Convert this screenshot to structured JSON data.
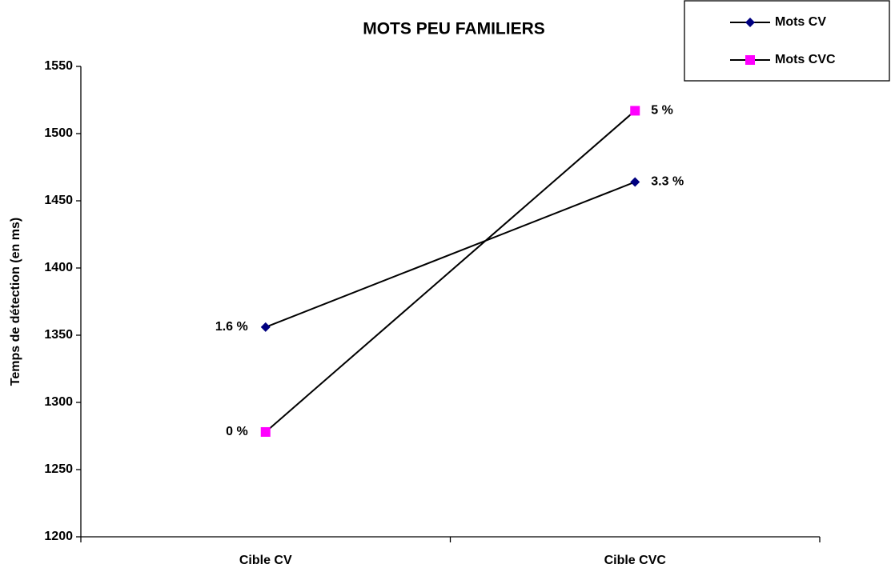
{
  "chart_data": {
    "type": "line",
    "title": "MOTS PEU FAMILIERS",
    "y_label": "Temps de détection (en ms)",
    "categories": [
      "Cible CV",
      "Cible CVC"
    ],
    "series": [
      {
        "name": "Mots CV",
        "color": "#000080",
        "marker": "diamond",
        "values": [
          1356,
          1464
        ],
        "point_labels": [
          "1.6 %",
          "3.3 %"
        ]
      },
      {
        "name": "Mots CVC",
        "color": "#ff00ff",
        "marker": "square",
        "values": [
          1278,
          1517
        ],
        "point_labels": [
          "0 %",
          "5 %"
        ]
      }
    ],
    "ylim": [
      1200,
      1550
    ],
    "yticks": [
      1200,
      1250,
      1300,
      1350,
      1400,
      1450,
      1500,
      1550
    ],
    "grid": false,
    "legend": "top-right"
  }
}
